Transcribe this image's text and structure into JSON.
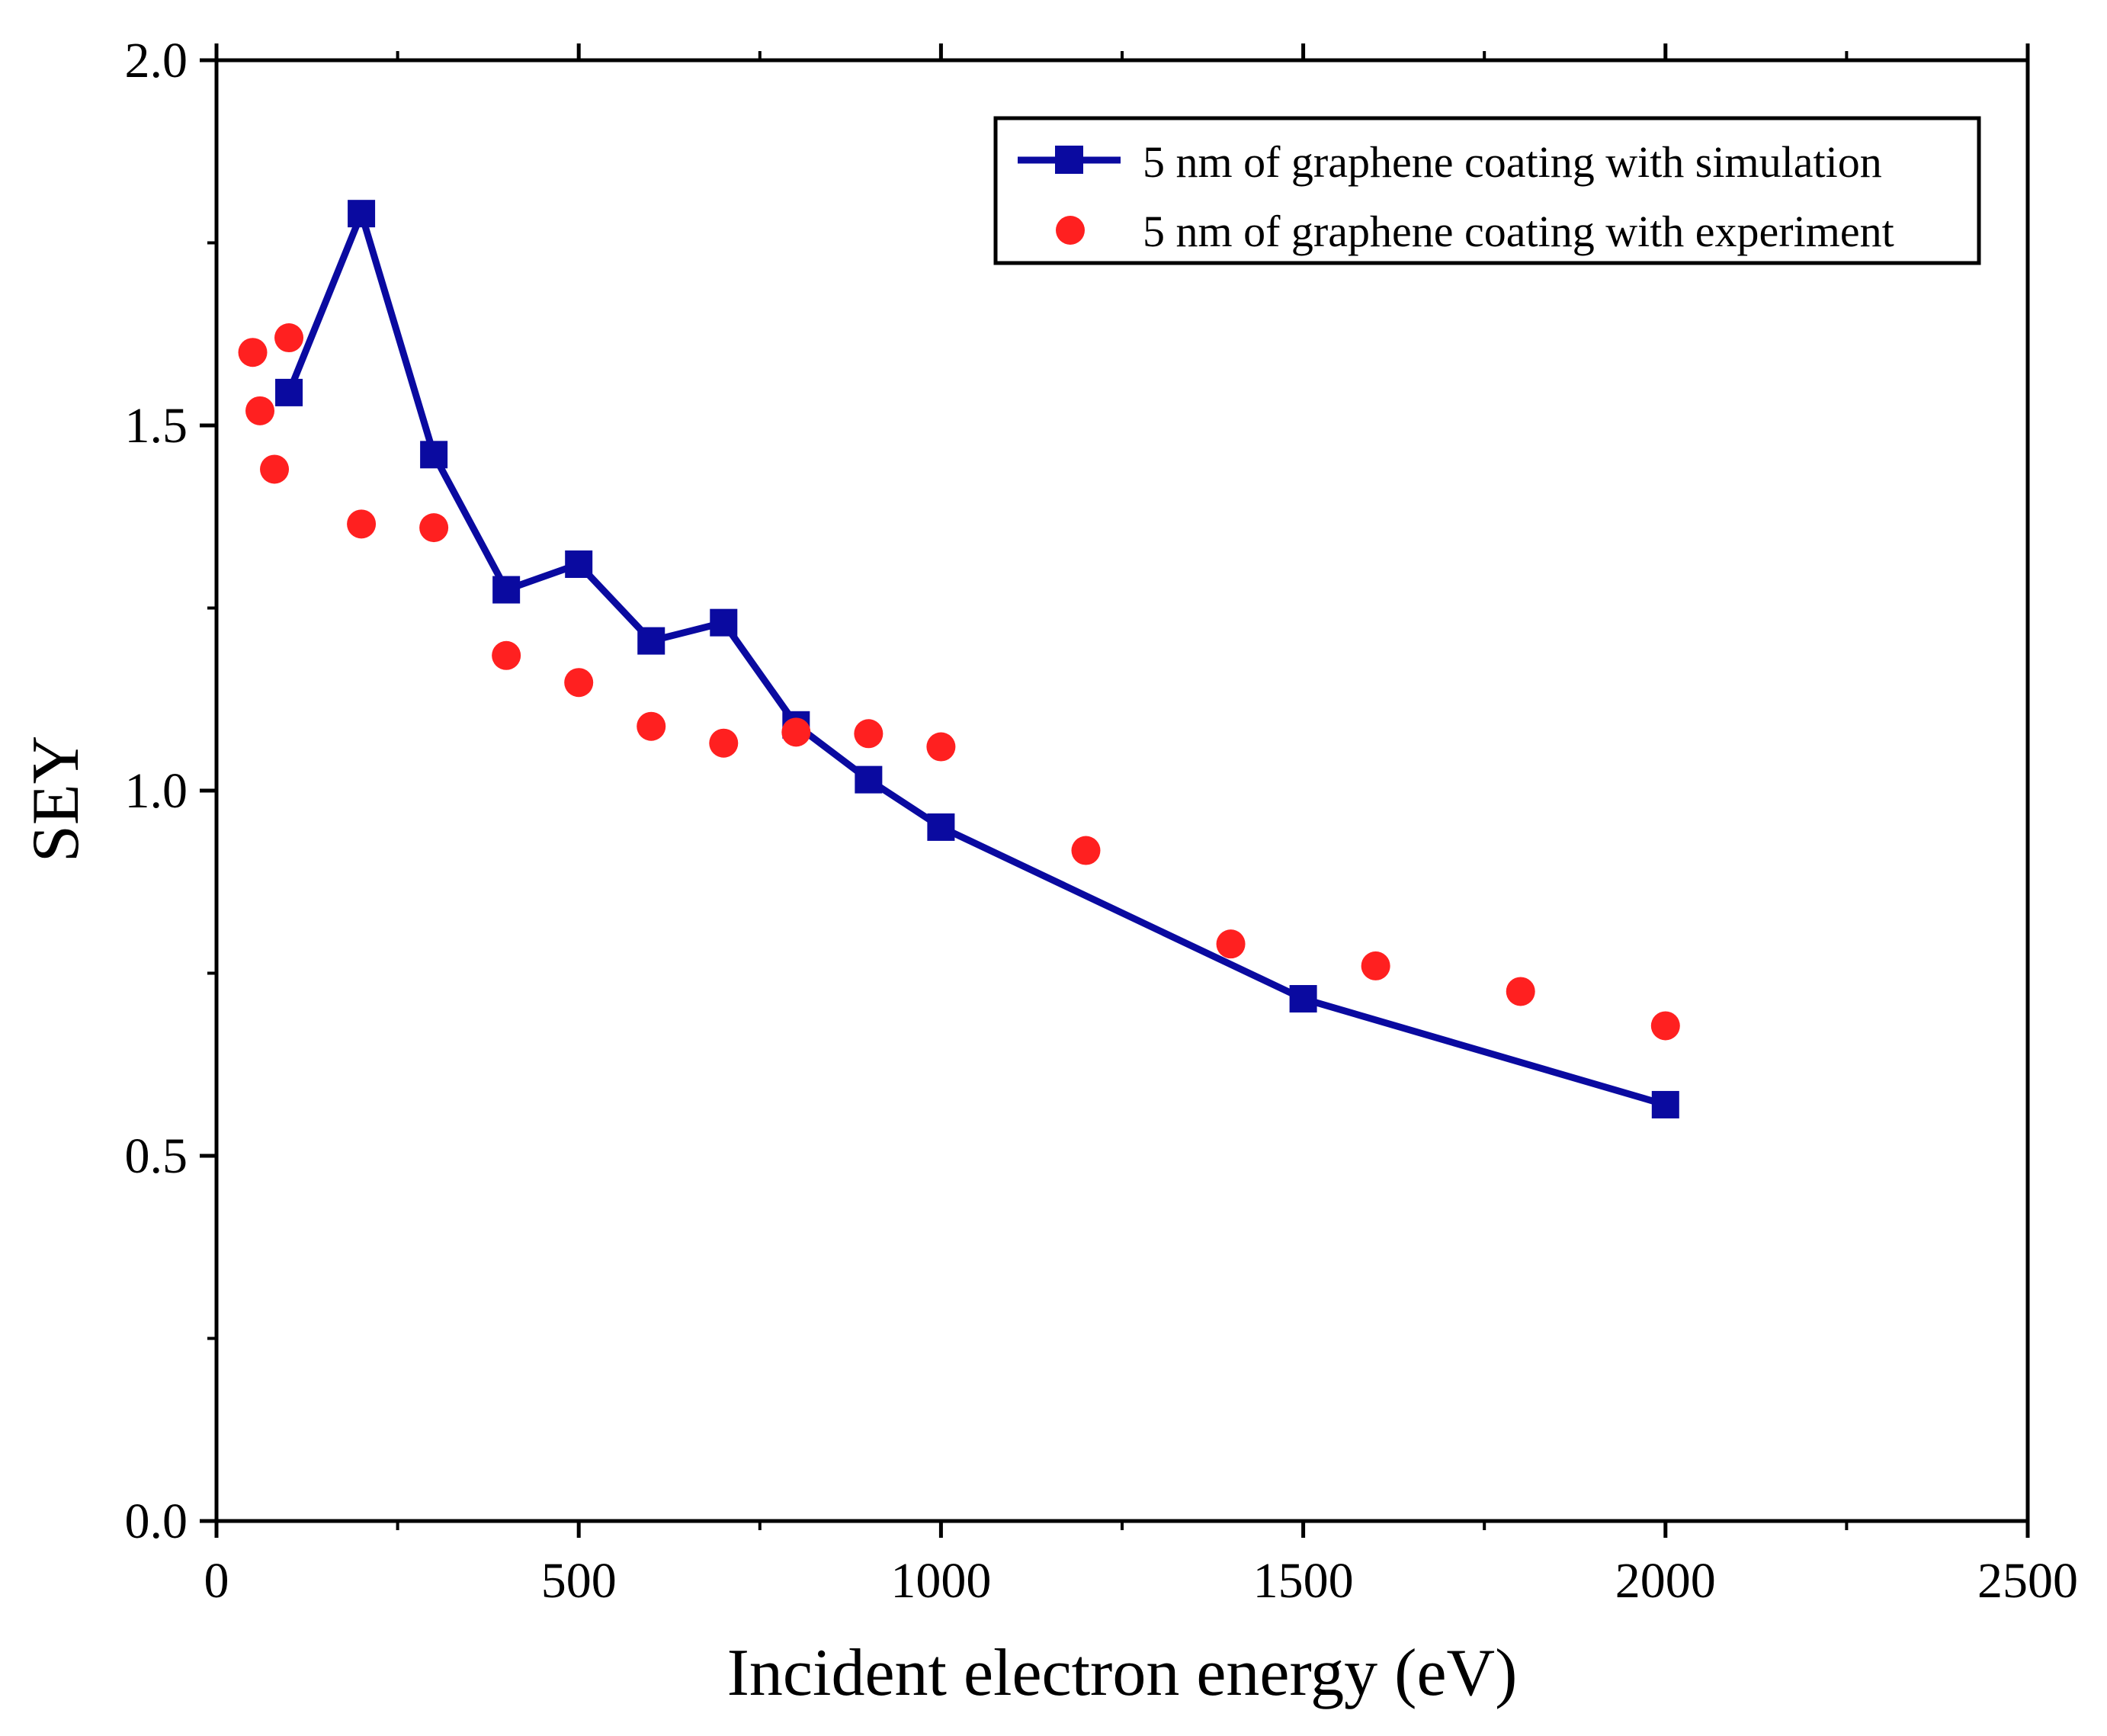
{
  "chart_data": {
    "type": "line",
    "title": "",
    "xlabel": "Incident electron energy (eV)",
    "ylabel": "SEY",
    "xlim": [
      0,
      2500
    ],
    "ylim": [
      0.0,
      2.0
    ],
    "x_ticks": [
      0,
      500,
      1000,
      1500,
      2000,
      2500
    ],
    "x_tick_labels": [
      "0",
      "500",
      "1000",
      "1500",
      "2000",
      "2500"
    ],
    "y_ticks": [
      0.0,
      0.5,
      1.0,
      1.5,
      2.0
    ],
    "y_tick_labels": [
      "0.0",
      "0.5",
      "1.0",
      "1.5",
      "2.0"
    ],
    "x_minor_ticks": [
      250,
      750,
      1250,
      1750,
      2250
    ],
    "y_minor_ticks": [
      0.25,
      0.75,
      1.25,
      1.75
    ],
    "grid": false,
    "legend_position": "top-right",
    "series": [
      {
        "name": "5 nm of graphene coating with simulation",
        "kind": "line+square",
        "color": "#0a0aa0",
        "x": [
          100,
          200,
          300,
          400,
          500,
          600,
          700,
          800,
          900,
          1000,
          1500,
          2000
        ],
        "y": [
          1.545,
          1.79,
          1.46,
          1.275,
          1.31,
          1.205,
          1.23,
          1.09,
          1.015,
          0.95,
          0.715,
          0.57
        ]
      },
      {
        "name": "5 nm of graphene coating with experiment",
        "kind": "scatter-circle",
        "color": "#ff2020",
        "x": [
          50,
          60,
          80,
          100,
          200,
          300,
          400,
          500,
          600,
          700,
          800,
          900,
          1000,
          1200,
          1400,
          1600,
          1800,
          2000
        ],
        "y": [
          1.6,
          1.52,
          1.44,
          1.62,
          1.365,
          1.36,
          1.185,
          1.148,
          1.088,
          1.065,
          1.08,
          1.078,
          1.06,
          0.918,
          0.79,
          0.76,
          0.725,
          0.678
        ]
      }
    ]
  }
}
